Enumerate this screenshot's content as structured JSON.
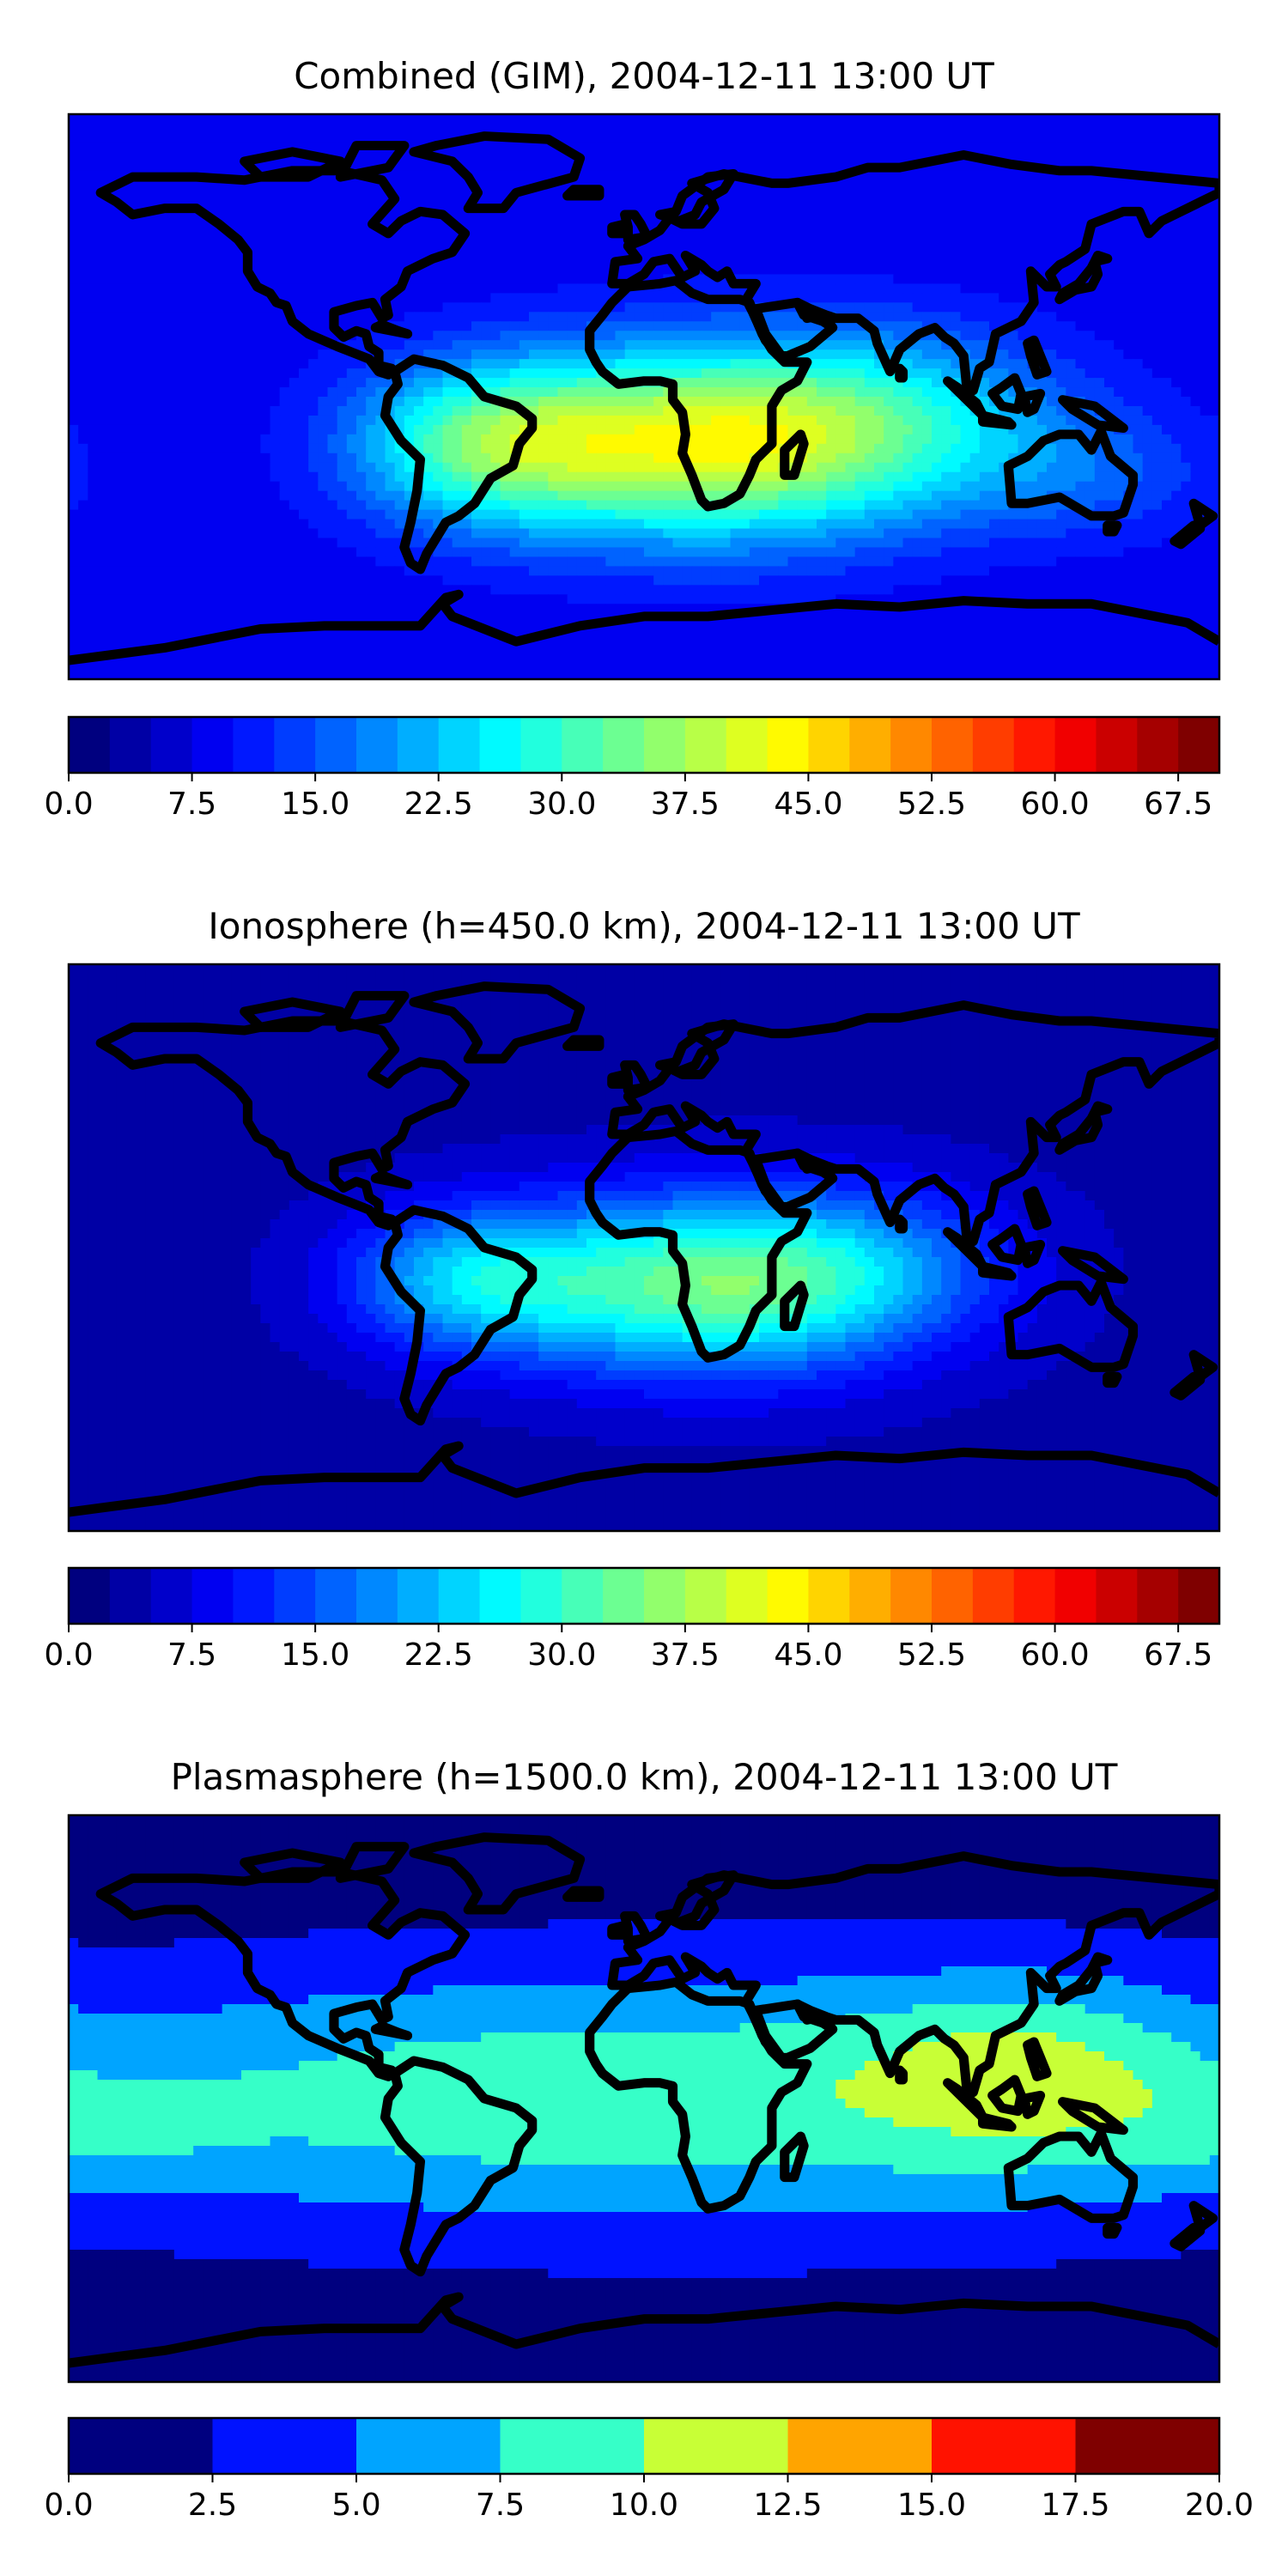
{
  "panels": [
    {
      "title": "Combined (GIM), 2004-12-11 13:00 UT",
      "colorbar": {
        "min": 0,
        "max": 70,
        "levels": 28,
        "ticks": [
          "0.0",
          "7.5",
          "15.0",
          "22.5",
          "30.0",
          "37.5",
          "45.0",
          "52.5",
          "60.0",
          "67.5"
        ],
        "tick_values": [
          0,
          7.5,
          15,
          22.5,
          30,
          37.5,
          45,
          52.5,
          60,
          67.5
        ]
      },
      "field": {
        "base": 8,
        "blobs": [
          {
            "lon": 20,
            "lat": -15,
            "amp": 32,
            "slon": 50,
            "slat": 22
          },
          {
            "lon": -50,
            "lat": -15,
            "amp": 18,
            "slon": 30,
            "slat": 18
          },
          {
            "lon": 80,
            "lat": -5,
            "amp": 10,
            "slon": 40,
            "slat": 20
          },
          {
            "lon": 140,
            "lat": -25,
            "amp": 6,
            "slon": 30,
            "slat": 15
          }
        ]
      }
    },
    {
      "title": "Ionosphere  (h=450.0 km), 2004-12-11 13:00 UT",
      "colorbar": {
        "min": 0,
        "max": 70,
        "levels": 28,
        "ticks": [
          "0.0",
          "7.5",
          "15.0",
          "22.5",
          "30.0",
          "37.5",
          "45.0",
          "52.5",
          "60.0",
          "67.5"
        ],
        "tick_values": [
          0,
          7.5,
          15,
          22.5,
          30,
          37.5,
          45,
          52.5,
          60,
          67.5
        ]
      },
      "field": {
        "base": 4,
        "blobs": [
          {
            "lon": 20,
            "lat": -12,
            "amp": 28,
            "slon": 45,
            "slat": 20
          },
          {
            "lon": -55,
            "lat": -10,
            "amp": 16,
            "slon": 28,
            "slat": 16
          },
          {
            "lon": 70,
            "lat": -5,
            "amp": 8,
            "slon": 35,
            "slat": 18
          }
        ]
      }
    },
    {
      "title": "Plasmasphere (h=1500.0 km), 2004-12-11 13:00 UT",
      "colorbar": {
        "min": 0,
        "max": 20,
        "levels": 8,
        "ticks": [
          "0.0",
          "2.5",
          "5.0",
          "7.5",
          "10.0",
          "12.5",
          "15.0",
          "17.5",
          "20.0"
        ],
        "tick_values": [
          0,
          2.5,
          5,
          7.5,
          10,
          12.5,
          15,
          17.5,
          20
        ]
      },
      "field": {
        "base": 1,
        "blobs": [
          {
            "lon": 10,
            "lat": 0,
            "amp": 8.5,
            "slon": 180,
            "slat": 30
          },
          {
            "lon": 120,
            "lat": 10,
            "amp": 4,
            "slon": 35,
            "slat": 20
          },
          {
            "lon": -170,
            "lat": -10,
            "amp": 2.5,
            "slon": 30,
            "slat": 12
          }
        ]
      }
    }
  ],
  "colors": {
    "coastline": "#000000",
    "jet_stops": [
      "#00007f",
      "#0000ff",
      "#007fff",
      "#00ffff",
      "#7fff7f",
      "#ffff00",
      "#ff7f00",
      "#ff0000",
      "#7f0000"
    ]
  }
}
